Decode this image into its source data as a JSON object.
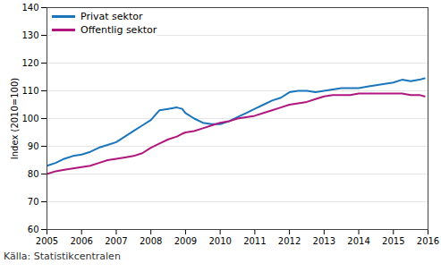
{
  "chart_data": {
    "type": "line",
    "y_label": "Index (2010=100)",
    "caption": "Källa: Statistikcentralen",
    "x": [
      2005,
      2005.25,
      2005.5,
      2005.75,
      2006,
      2006.25,
      2006.5,
      2006.75,
      2007,
      2007.25,
      2007.5,
      2007.75,
      2008,
      2008.25,
      2008.5,
      2008.75,
      2008.9,
      2009,
      2009.25,
      2009.5,
      2009.75,
      2010,
      2010.25,
      2010.5,
      2010.75,
      2011,
      2011.25,
      2011.5,
      2011.75,
      2012,
      2012.25,
      2012.5,
      2012.75,
      2013,
      2013.25,
      2013.5,
      2013.75,
      2014,
      2014.25,
      2014.5,
      2014.75,
      2015,
      2015.25,
      2015.5,
      2015.75,
      2015.9
    ],
    "series": [
      {
        "name": "Privat sektor",
        "color": "#1b75bb",
        "values": [
          83,
          84,
          85.5,
          86.5,
          87,
          88,
          89.5,
          90.5,
          91.5,
          93.5,
          95.5,
          97.5,
          99.5,
          103,
          103.5,
          104,
          103.5,
          102,
          100,
          98.5,
          98,
          98,
          99,
          100.5,
          102,
          103.5,
          105,
          106.5,
          107.5,
          109.5,
          110,
          110,
          109.5,
          110,
          110.5,
          111,
          111,
          111,
          111.5,
          112,
          112.5,
          113,
          114,
          113.5,
          114,
          114.5
        ]
      },
      {
        "name": "Offentlig sektor",
        "color": "#b0177e",
        "values": [
          80,
          81,
          81.5,
          82,
          82.5,
          83,
          84,
          85,
          85.5,
          86,
          86.5,
          87.5,
          89.5,
          91,
          92.5,
          93.5,
          94.5,
          95,
          95.5,
          96.5,
          97.5,
          98.5,
          99,
          100,
          100.5,
          101,
          102,
          103,
          104,
          105,
          105.5,
          106,
          107,
          108,
          108.5,
          108.5,
          108.5,
          109,
          109,
          109,
          109,
          109,
          109,
          108.5,
          108.5,
          108
        ]
      }
    ],
    "xlim": [
      2005,
      2016
    ],
    "xticks": [
      2005,
      2006,
      2007,
      2008,
      2009,
      2010,
      2011,
      2012,
      2013,
      2014,
      2015,
      2016
    ],
    "ylim": [
      60,
      140
    ],
    "yticks": [
      60,
      70,
      80,
      90,
      100,
      110,
      120,
      130,
      140
    ],
    "grid": true,
    "legend": "top-left"
  }
}
